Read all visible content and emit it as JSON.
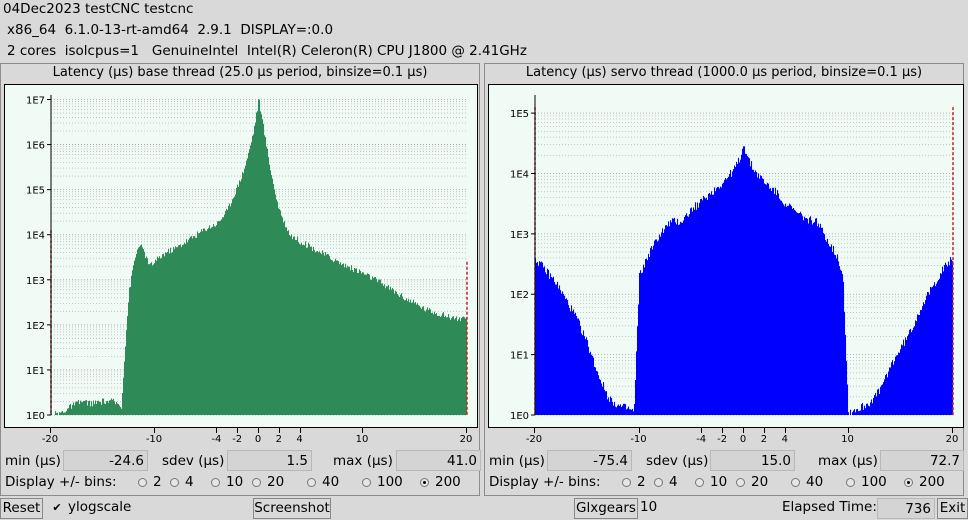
{
  "info": {
    "line1": "04Dec2023 testCNC testcnc",
    "line2": "x86_64  6.1.0-13-rt-amd64  2.9.1  DISPLAY=:0.0",
    "line3": "2 cores  isolcpus=1   GenuineIntel  Intel(R) Celeron(R) CPU J1800 @ 2.41GHz"
  },
  "base": {
    "title": "Latency (µs) base thread (25.0 µs period, binsize=0.1 µs)",
    "min_label": "min (µs)",
    "min_value": "-24.6",
    "sdev_label": "sdev (µs)",
    "sdev_value": "1.5",
    "max_label": "max (µs)",
    "max_value": "41.0",
    "bins_label": "Display +/- bins:",
    "color": "#2e8b57"
  },
  "servo": {
    "title": "Latency (µs) servo thread (1000.0 µs period, binsize=0.1 µs)",
    "min_label": "min (µs)",
    "min_value": "-75.4",
    "sdev_label": "sdev (µs)",
    "sdev_value": "15.0",
    "max_label": "max (µs)",
    "max_value": "72.7",
    "bins_label": "Display +/- bins:",
    "color": "#0000ff"
  },
  "bins_options": [
    "2",
    "4",
    "10",
    "20",
    "40",
    "100",
    "200"
  ],
  "bins_selected": "200",
  "bottom": {
    "reset_label": "Reset",
    "ylogscale_label": "ylogscale",
    "ylogscale_checked": true,
    "screenshot_label": "Screenshot",
    "glxgears_label": "Glxgears",
    "glxgears_value": "10",
    "elapsed_label": "Elapsed Time:",
    "elapsed_value": "736",
    "exit_label": "Exit"
  },
  "chart_data": [
    {
      "type": "bar",
      "title": "Latency (µs) base thread (25.0 µs period, binsize=0.1 µs)",
      "xlim": [
        -20,
        20
      ],
      "x_ticks": [
        -20,
        -10,
        -4,
        -2,
        0,
        2,
        4,
        10,
        20
      ],
      "y_scale": "log",
      "y_ticks": [
        "1E0",
        "1E1",
        "1E2",
        "1E3",
        "1E4",
        "1E5",
        "1E6",
        "1E7"
      ],
      "ylim_log10": [
        0,
        7.1
      ],
      "series_color": "#2e8b57",
      "profile": [
        [
          -20,
          0
        ],
        [
          -19,
          0.05
        ],
        [
          -18,
          0.2
        ],
        [
          -17,
          0.3
        ],
        [
          -16,
          0.25
        ],
        [
          -15,
          0.3
        ],
        [
          -14,
          0.3
        ],
        [
          -13.2,
          0.2
        ],
        [
          -13,
          1.0
        ],
        [
          -12.5,
          2.7
        ],
        [
          -12,
          3.4
        ],
        [
          -11.5,
          3.8
        ],
        [
          -11,
          3.6
        ],
        [
          -10.5,
          3.3
        ],
        [
          -10,
          3.4
        ],
        [
          -9,
          3.6
        ],
        [
          -8,
          3.7
        ],
        [
          -7,
          3.85
        ],
        [
          -6,
          4.0
        ],
        [
          -5,
          4.15
        ],
        [
          -4,
          4.25
        ],
        [
          -3,
          4.55
        ],
        [
          -2,
          5.1
        ],
        [
          -1.5,
          5.4
        ],
        [
          -1,
          5.8
        ],
        [
          -0.5,
          6.3
        ],
        [
          0,
          7.0
        ],
        [
          0.5,
          6.3
        ],
        [
          1,
          5.6
        ],
        [
          1.5,
          5.0
        ],
        [
          2,
          4.5
        ],
        [
          3,
          4.0
        ],
        [
          4,
          3.85
        ],
        [
          6,
          3.6
        ],
        [
          8,
          3.35
        ],
        [
          10,
          3.15
        ],
        [
          12,
          2.9
        ],
        [
          14,
          2.6
        ],
        [
          16,
          2.35
        ],
        [
          18,
          2.2
        ],
        [
          20,
          2.1
        ]
      ],
      "spikes": [
        {
          "x": -20,
          "y_log10": 4.1
        },
        {
          "x": 20,
          "y_log10": 3.4
        }
      ],
      "peak": {
        "x": 0,
        "y_log10": 7.0
      }
    },
    {
      "type": "bar",
      "title": "Latency (µs) servo thread (1000.0 µs period, binsize=0.1 µs)",
      "xlim": [
        -20,
        20
      ],
      "x_ticks": [
        -20,
        -10,
        -4,
        -2,
        0,
        2,
        4,
        10,
        20
      ],
      "y_scale": "log",
      "y_ticks": [
        "1E0",
        "1E1",
        "1E2",
        "1E3",
        "1E4",
        "1E5"
      ],
      "ylim_log10": [
        0,
        5.3
      ],
      "series_color": "#0000ff",
      "profile": [
        [
          -20,
          2.6
        ],
        [
          -19,
          2.4
        ],
        [
          -18,
          2.2
        ],
        [
          -17,
          1.9
        ],
        [
          -16,
          1.6
        ],
        [
          -15,
          1.2
        ],
        [
          -14,
          0.7
        ],
        [
          -13,
          0.3
        ],
        [
          -12,
          0.15
        ],
        [
          -11,
          0.1
        ],
        [
          -10.5,
          0.05
        ],
        [
          -10,
          2.3
        ],
        [
          -9,
          2.7
        ],
        [
          -8,
          3.0
        ],
        [
          -7,
          3.2
        ],
        [
          -6,
          3.2
        ],
        [
          -5,
          3.4
        ],
        [
          -4,
          3.55
        ],
        [
          -3,
          3.7
        ],
        [
          -2,
          3.85
        ],
        [
          -1,
          4.05
        ],
        [
          -0.5,
          4.2
        ],
        [
          0,
          4.45
        ],
        [
          0.5,
          4.2
        ],
        [
          1,
          4.05
        ],
        [
          2,
          3.85
        ],
        [
          3,
          3.7
        ],
        [
          4,
          3.5
        ],
        [
          5,
          3.35
        ],
        [
          6,
          3.25
        ],
        [
          7,
          3.2
        ],
        [
          8,
          2.9
        ],
        [
          9,
          2.6
        ],
        [
          9.5,
          2.3
        ],
        [
          10,
          0.05
        ],
        [
          11,
          0.1
        ],
        [
          12,
          0.2
        ],
        [
          13,
          0.4
        ],
        [
          14,
          0.8
        ],
        [
          15,
          1.1
        ],
        [
          16,
          1.4
        ],
        [
          17,
          1.8
        ],
        [
          18,
          2.1
        ],
        [
          19,
          2.4
        ],
        [
          20,
          2.6
        ]
      ],
      "spikes": [
        {
          "x": -20,
          "y_log10": 5.1
        },
        {
          "x": 20,
          "y_log10": 5.1
        }
      ],
      "peak": {
        "x": 0,
        "y_log10": 4.45
      }
    }
  ]
}
